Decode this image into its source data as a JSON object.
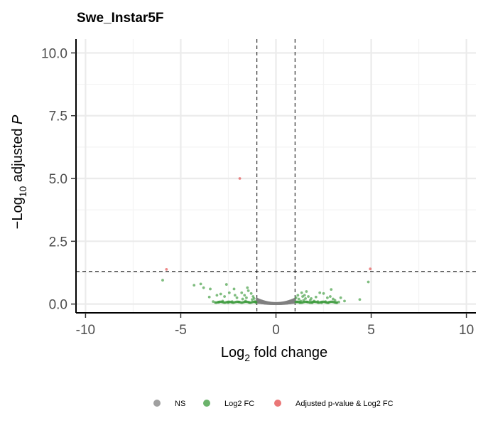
{
  "chart_data": {
    "type": "scatter",
    "title": "Swe_Instar5F",
    "xlabel_main": "Log",
    "xlabel_sub": "2",
    "xlabel_tail": " fold change",
    "ylabel_prefix": "−Log",
    "ylabel_sub": "10",
    "ylabel_tail": " adjusted ",
    "ylabel_italic": "P",
    "xlim": [
      -10.5,
      10.5
    ],
    "ylim": [
      -0.35,
      10.55
    ],
    "x_ticks": [
      -10,
      -5,
      0,
      5,
      10
    ],
    "x_tick_labels": [
      "-10",
      "-5",
      "0",
      "5",
      "10"
    ],
    "y_ticks": [
      0,
      2.5,
      5,
      7.5,
      10
    ],
    "y_tick_labels": [
      "0.0",
      "2.5",
      "5.0",
      "7.5",
      "10.0"
    ],
    "fc_cutoff": [
      -1,
      1
    ],
    "p_cutoff": 1.3,
    "grid": true,
    "legend_position": "bottom",
    "colors": {
      "NS": "#808080",
      "Log2 FC": "#3a9a3a",
      "Adjusted p-value & Log2 FC": "#e34a4a"
    },
    "legend": [
      "NS",
      "Log2 FC",
      "Adjusted p-value & Log2 FC"
    ],
    "series": [
      {
        "name": "Adjusted p-value & Log2 FC",
        "points": [
          [
            -1.9,
            5.0
          ],
          [
            -5.75,
            1.38
          ],
          [
            4.95,
            1.4
          ]
        ]
      },
      {
        "name": "Log2 FC",
        "points": [
          [
            -5.95,
            0.95
          ],
          [
            4.85,
            0.88
          ],
          [
            -3.95,
            0.8
          ],
          [
            -3.8,
            0.65
          ],
          [
            -4.3,
            0.75
          ],
          [
            -2.6,
            0.78
          ],
          [
            -2.2,
            0.6
          ],
          [
            -1.5,
            0.65
          ],
          [
            -1.45,
            0.53
          ],
          [
            -3.45,
            0.6
          ],
          [
            -3.5,
            0.28
          ],
          [
            -3.1,
            0.35
          ],
          [
            -2.9,
            0.4
          ],
          [
            -2.7,
            0.3
          ],
          [
            -2.45,
            0.45
          ],
          [
            -2.05,
            0.25
          ],
          [
            -1.8,
            0.45
          ],
          [
            -1.65,
            0.35
          ],
          [
            -1.3,
            0.42
          ],
          [
            -1.2,
            0.3
          ],
          [
            -1.15,
            0.22
          ],
          [
            -1.1,
            0.1
          ],
          [
            -1.6,
            0.12
          ],
          [
            -2.3,
            0.1
          ],
          [
            -1.95,
            0.08
          ],
          [
            -2.5,
            0.05
          ],
          [
            -3.0,
            0.07
          ],
          [
            -1.4,
            0.06
          ],
          [
            -1.25,
            0.18
          ],
          [
            -1.05,
            0.05
          ],
          [
            -2.8,
            0.12
          ],
          [
            -3.3,
            0.1
          ],
          [
            -2.15,
            0.35
          ],
          [
            -1.75,
            0.2
          ],
          [
            -1.55,
            0.25
          ],
          [
            1.1,
            0.08
          ],
          [
            1.2,
            0.2
          ],
          [
            1.35,
            0.45
          ],
          [
            1.5,
            0.35
          ],
          [
            1.7,
            0.3
          ],
          [
            1.85,
            0.22
          ],
          [
            2.0,
            0.12
          ],
          [
            2.3,
            0.45
          ],
          [
            2.5,
            0.42
          ],
          [
            2.7,
            0.25
          ],
          [
            2.85,
            0.3
          ],
          [
            3.0,
            0.2
          ],
          [
            3.1,
            0.15
          ],
          [
            3.3,
            0.08
          ],
          [
            3.6,
            0.12
          ],
          [
            4.4,
            0.18
          ],
          [
            2.9,
            0.58
          ],
          [
            1.6,
            0.5
          ],
          [
            1.3,
            0.12
          ],
          [
            1.05,
            0.25
          ],
          [
            1.15,
            0.35
          ],
          [
            2.2,
            0.1
          ],
          [
            1.45,
            0.15
          ],
          [
            1.9,
            0.05
          ],
          [
            2.4,
            0.05
          ],
          [
            2.6,
            0.1
          ],
          [
            3.4,
            0.25
          ],
          [
            1.25,
            0.05
          ],
          [
            1.8,
            0.15
          ],
          [
            2.1,
            0.28
          ],
          [
            1.4,
            0.3
          ],
          [
            1.65,
            0.08
          ],
          [
            2.75,
            0.05
          ],
          [
            3.2,
            0.05
          ],
          [
            1.55,
            0.22
          ]
        ]
      }
    ]
  }
}
